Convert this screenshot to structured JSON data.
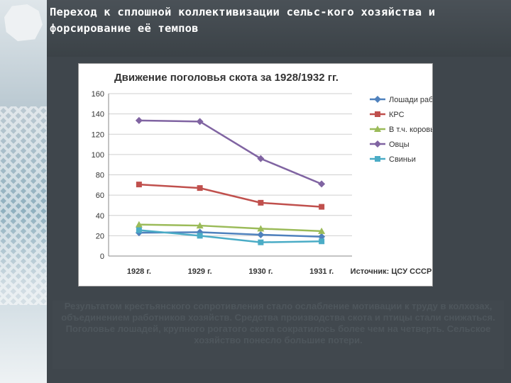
{
  "slide": {
    "title": "Переход к сплошной коллективизации сельс-кого хозяйства и форсирование её темпов",
    "body": "Результатом крестьянского сопротивления стало ослабление мотивации к труду в колхозах, объединением работников хозяйств. Средства производства скота и птицы стали снижаться. Поголовье лошадей, крупного рогатого скота сократилось более чем на четверть. Сельское хозяйство понесло большие потери."
  },
  "chart_data": {
    "type": "line",
    "title": "Движение поголовья скота за 1928/1932 гг.",
    "categories": [
      "1928 г.",
      "1929 г.",
      "1930 г.",
      "1931 г."
    ],
    "ylim": [
      0,
      160
    ],
    "yticks": [
      0,
      20,
      40,
      60,
      80,
      100,
      120,
      140,
      160
    ],
    "grid": true,
    "legend": "right",
    "source": "Источник: ЦСУ СССР",
    "series": [
      {
        "name": "Лошади рабочие",
        "color": "#4f81bd",
        "marker": "diamond",
        "values": [
          23,
          23.5,
          21,
          19
        ]
      },
      {
        "name": "КРС",
        "color": "#c0504d",
        "marker": "square",
        "values": [
          70.5,
          67,
          52.5,
          48.5
        ]
      },
      {
        "name": "В т.ч. коровы",
        "color": "#9bbb59",
        "marker": "triangle",
        "values": [
          31,
          30,
          27,
          24.5
        ]
      },
      {
        "name": "Овцы",
        "color": "#8064a2",
        "marker": "diamond",
        "values": [
          133.5,
          132.5,
          96,
          71
        ]
      },
      {
        "name": "Свиньи",
        "color": "#4bacc6",
        "marker": "square",
        "values": [
          25.5,
          20,
          13.5,
          14.5
        ]
      }
    ]
  }
}
